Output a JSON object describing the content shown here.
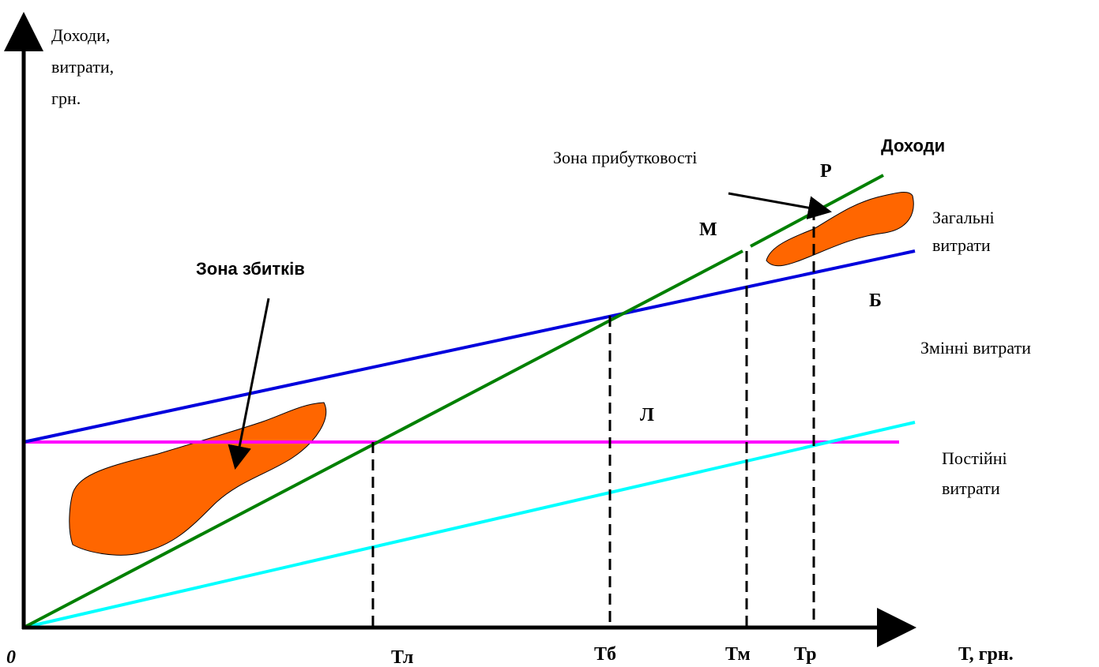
{
  "axes": {
    "y_label": [
      "Доходи,",
      "витрати,",
      "грн."
    ],
    "x_label": "Т, грн.",
    "origin": "0"
  },
  "lines": {
    "revenue": "Доходи",
    "total_costs": [
      "Загальні",
      "витрати"
    ],
    "variable_costs": "Змінні витрати",
    "fixed_costs": [
      "Постійні",
      "витрати"
    ]
  },
  "zones": {
    "profit": "Зона прибутковості",
    "loss": "Зона збитків"
  },
  "points": {
    "p": "Р",
    "m": "М",
    "b": "Б",
    "l": "Л"
  },
  "x_marks": [
    "Тл",
    "Тб",
    "Тм",
    "Тр"
  ]
}
